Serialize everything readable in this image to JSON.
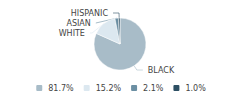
{
  "chart_data": {
    "type": "pie",
    "categories": [
      "BLACK",
      "WHITE",
      "ASIAN",
      "HISPANIC"
    ],
    "values": [
      81.7,
      15.2,
      2.1,
      1.0
    ],
    "value_labels": [
      "81.7%",
      "15.2%",
      "2.1%",
      "1.0%"
    ],
    "colors": [
      "#a8bcc8",
      "#dce8f0",
      "#6b8fa3",
      "#2d4f63"
    ],
    "legend": "bottom"
  }
}
